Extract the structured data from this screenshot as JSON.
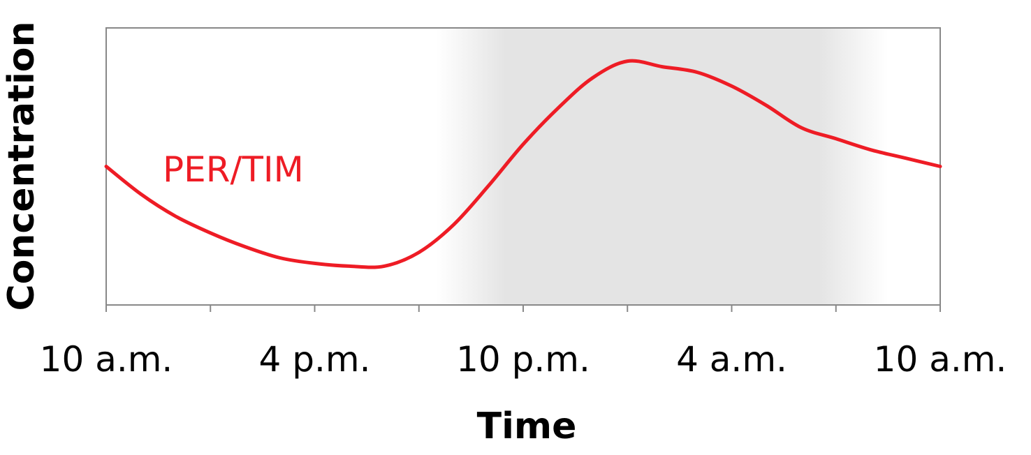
{
  "chart_data": {
    "type": "line",
    "title": "",
    "xlabel": "Time",
    "ylabel": "Concentration",
    "x_tick_labels": [
      "10 a.m.",
      "4 p.m.",
      "10 p.m.",
      "4 a.m.",
      "10 a.m."
    ],
    "xlim": [
      0,
      24
    ],
    "ylim": [
      0,
      1
    ],
    "grid": false,
    "y_tick_labels_shown": false,
    "shaded_region": {
      "start_hour": 9.5,
      "end_hour": 22.5,
      "fade_in_until": 11.5,
      "fade_out_from": 20.5
    },
    "series": [
      {
        "name": "PER/TIM",
        "color": "#ee1c25",
        "x": [
          0,
          1,
          2,
          3,
          4,
          5,
          6,
          7,
          8,
          9,
          10,
          11,
          12,
          13,
          14,
          15,
          16,
          17,
          18,
          19,
          20,
          21,
          22,
          23,
          24
        ],
        "y": [
          0.5,
          0.4,
          0.32,
          0.26,
          0.21,
          0.17,
          0.15,
          0.14,
          0.14,
          0.19,
          0.29,
          0.43,
          0.58,
          0.71,
          0.82,
          0.88,
          0.86,
          0.84,
          0.79,
          0.72,
          0.64,
          0.6,
          0.56,
          0.53,
          0.5
        ]
      }
    ]
  }
}
